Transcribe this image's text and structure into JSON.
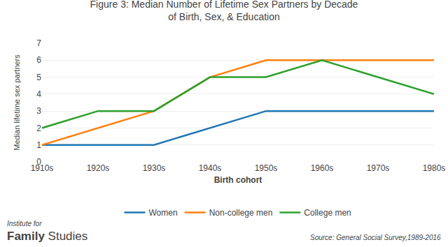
{
  "chart_data": {
    "type": "line",
    "title": "Figure 3: Median Number of Lifetime Sex Partners by Decade\nof Birth, Sex, & Education",
    "x_label": "Birth cohort",
    "y_label": "Median lifetime sex partners",
    "categories": [
      "1910s",
      "1920s",
      "1930s",
      "1940s",
      "1950s",
      "1960s",
      "1970s",
      "1980s"
    ],
    "series": [
      {
        "name": "Women",
        "values": [
          1,
          1,
          1,
          null,
          3,
          3,
          3,
          3
        ]
      },
      {
        "name": "Non-college men",
        "values": [
          1,
          2,
          3,
          5,
          6,
          6,
          6,
          6
        ]
      },
      {
        "name": "College men",
        "values": [
          2,
          3,
          3,
          5,
          5,
          6,
          null,
          4
        ]
      }
    ],
    "ylim": [
      0,
      7
    ],
    "yticks": [
      0,
      1,
      2,
      3,
      4,
      5,
      6,
      7
    ],
    "grid": true,
    "legend": "bottom",
    "annotations": [
      "Source: General Social Survey,1989-2016",
      "Institute for",
      "Family",
      "Studies"
    ]
  }
}
